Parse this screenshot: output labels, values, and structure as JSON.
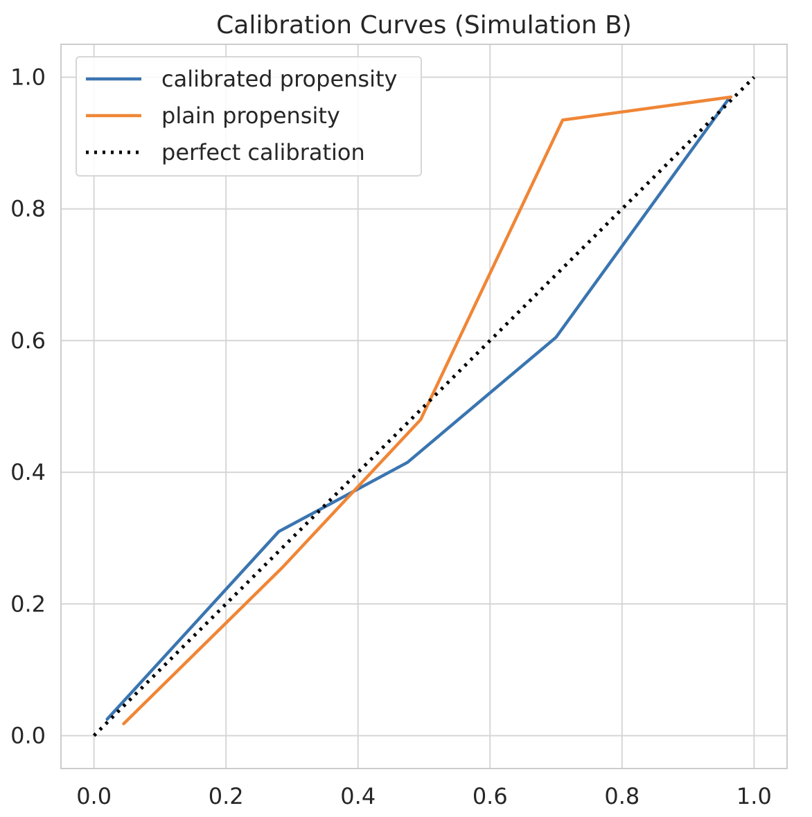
{
  "chart_data": {
    "type": "line",
    "title": "Calibration Curves (Simulation B)",
    "xlabel": "",
    "ylabel": "",
    "xlim": [
      -0.05,
      1.05
    ],
    "ylim": [
      -0.05,
      1.05
    ],
    "x_ticks": [
      0.0,
      0.2,
      0.4,
      0.6,
      0.8,
      1.0
    ],
    "y_ticks": [
      0.0,
      0.2,
      0.4,
      0.6,
      0.8,
      1.0
    ],
    "x_tick_labels": [
      "0.0",
      "0.2",
      "0.4",
      "0.6",
      "0.8",
      "1.0"
    ],
    "y_tick_labels": [
      "0.0",
      "0.2",
      "0.4",
      "0.6",
      "0.8",
      "1.0"
    ],
    "grid": true,
    "legend_position": "top-left",
    "series": [
      {
        "name": "calibrated propensity",
        "color": "#3a75b0",
        "style": "solid",
        "x": [
          0.02,
          0.28,
          0.475,
          0.7,
          0.96
        ],
        "y": [
          0.025,
          0.31,
          0.415,
          0.605,
          0.965
        ]
      },
      {
        "name": "plain propensity",
        "color": "#ef8636",
        "style": "solid",
        "x": [
          0.045,
          0.285,
          0.495,
          0.71,
          0.965
        ],
        "y": [
          0.018,
          0.255,
          0.48,
          0.935,
          0.97
        ]
      },
      {
        "name": "perfect calibration",
        "color": "#000000",
        "style": "dotted",
        "x": [
          0.0,
          1.0
        ],
        "y": [
          0.0,
          1.0
        ]
      }
    ]
  }
}
